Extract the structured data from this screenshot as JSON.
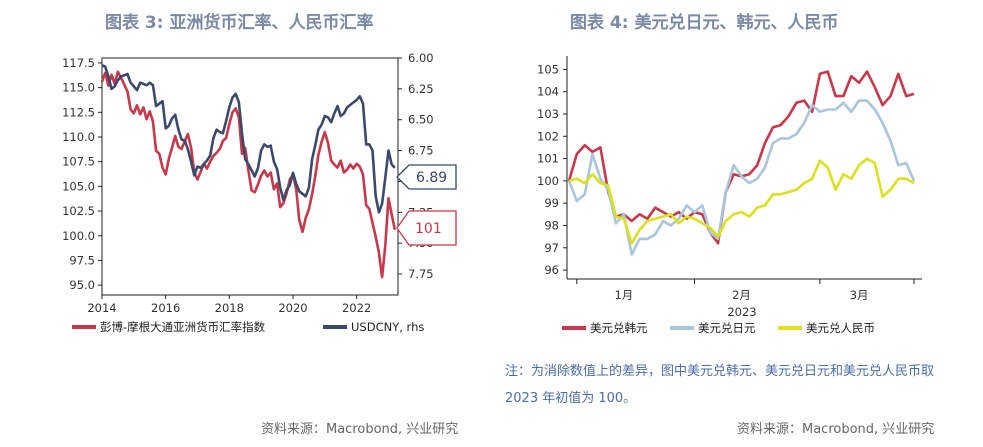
{
  "left_title": "图表 3:  亚洲货币汇率、人民币汇率",
  "right_title": "图表 4:  美元兑日元、韩元、人民币",
  "note": "注：为消除数值上的差异，图中美元兑韩元、美元兑日元和美元兑人民币取 2023 年初值为 100。",
  "source_left": "资料来源：Macrobond, 兴业研究",
  "source_right": "资料来源：Macrobond, 兴业研究",
  "colors": {
    "red": "#c8384a",
    "navy": "#3b4a6b",
    "lightblue": "#a9c6dc",
    "yellow": "#dbe21c"
  },
  "chart_data": [
    {
      "type": "line",
      "title": "图表 3:  亚洲货币汇率、人民币汇率",
      "x_range": [
        2014,
        2023.3
      ],
      "x_ticks": [
        "2014",
        "2016",
        "2018",
        "2020",
        "2022"
      ],
      "x_tick_values": [
        2014,
        2016,
        2018,
        2020,
        2022
      ],
      "ylim_left": [
        94,
        118
      ],
      "y_ticks_left": [
        "117.5",
        "115.0",
        "112.5",
        "110.0",
        "107.5",
        "105.0",
        "102.5",
        "100.0",
        "97.5",
        "95.0"
      ],
      "y_tick_values_left": [
        117.5,
        115,
        112.5,
        110,
        107.5,
        105,
        102.5,
        100,
        97.5,
        95
      ],
      "ylim_right": [
        6.0,
        7.92
      ],
      "y_axis_right_inverted": true,
      "y_ticks_right": [
        "6.00",
        "6.25",
        "6.50",
        "6.75",
        "7.00",
        "7.25",
        "7.50",
        "7.75"
      ],
      "y_tick_values_right": [
        6.0,
        6.25,
        6.5,
        6.75,
        7.0,
        7.25,
        7.5,
        7.75
      ],
      "series": [
        {
          "name": "彭博-摩根大通亚洲货币汇率指数",
          "axis": "left",
          "color": "#c8384a",
          "points": [
            [
              2014.0,
              115.6
            ],
            [
              2014.1,
              116.5
            ],
            [
              2014.2,
              115.2
            ],
            [
              2014.3,
              116.3
            ],
            [
              2014.4,
              115.4
            ],
            [
              2014.5,
              116.6
            ],
            [
              2014.6,
              116.0
            ],
            [
              2014.7,
              115.3
            ],
            [
              2014.8,
              114.6
            ],
            [
              2014.9,
              112.8
            ],
            [
              2015.0,
              112.4
            ],
            [
              2015.1,
              113.2
            ],
            [
              2015.2,
              112.3
            ],
            [
              2015.3,
              113.0
            ],
            [
              2015.4,
              111.8
            ],
            [
              2015.5,
              112.6
            ],
            [
              2015.6,
              111.6
            ],
            [
              2015.7,
              108.6
            ],
            [
              2015.8,
              108.3
            ],
            [
              2015.9,
              106.9
            ],
            [
              2016.0,
              106.2
            ],
            [
              2016.1,
              107.8
            ],
            [
              2016.2,
              108.9
            ],
            [
              2016.3,
              110.1
            ],
            [
              2016.4,
              109.0
            ],
            [
              2016.5,
              108.8
            ],
            [
              2016.6,
              109.6
            ],
            [
              2016.7,
              110.3
            ],
            [
              2016.8,
              108.9
            ],
            [
              2016.9,
              106.4
            ],
            [
              2017.0,
              105.7
            ],
            [
              2017.1,
              106.5
            ],
            [
              2017.2,
              107.3
            ],
            [
              2017.3,
              106.8
            ],
            [
              2017.4,
              107.5
            ],
            [
              2017.5,
              108.1
            ],
            [
              2017.6,
              108.4
            ],
            [
              2017.7,
              108.8
            ],
            [
              2017.8,
              109.6
            ],
            [
              2017.9,
              109.9
            ],
            [
              2018.0,
              111.3
            ],
            [
              2018.1,
              112.5
            ],
            [
              2018.2,
              112.9
            ],
            [
              2018.3,
              112.0
            ],
            [
              2018.4,
              108.3
            ],
            [
              2018.5,
              108.9
            ],
            [
              2018.6,
              106.6
            ],
            [
              2018.7,
              104.6
            ],
            [
              2018.8,
              104.4
            ],
            [
              2018.9,
              105.2
            ],
            [
              2019.0,
              106.1
            ],
            [
              2019.1,
              106.6
            ],
            [
              2019.2,
              106.0
            ],
            [
              2019.3,
              106.4
            ],
            [
              2019.4,
              104.7
            ],
            [
              2019.5,
              105.3
            ],
            [
              2019.6,
              102.9
            ],
            [
              2019.7,
              103.3
            ],
            [
              2019.8,
              104.3
            ],
            [
              2019.9,
              105.7
            ],
            [
              2020.0,
              106.2
            ],
            [
              2020.1,
              104.7
            ],
            [
              2020.2,
              101.6
            ],
            [
              2020.3,
              100.4
            ],
            [
              2020.4,
              101.8
            ],
            [
              2020.5,
              102.7
            ],
            [
              2020.6,
              104.2
            ],
            [
              2020.7,
              106.0
            ],
            [
              2020.8,
              108.2
            ],
            [
              2020.9,
              109.5
            ],
            [
              2021.0,
              110.5
            ],
            [
              2021.1,
              109.4
            ],
            [
              2021.2,
              107.6
            ],
            [
              2021.3,
              107.2
            ],
            [
              2021.4,
              106.9
            ],
            [
              2021.5,
              107.6
            ],
            [
              2021.6,
              106.4
            ],
            [
              2021.7,
              106.7
            ],
            [
              2021.8,
              107.2
            ],
            [
              2021.9,
              106.8
            ],
            [
              2022.0,
              107.3
            ],
            [
              2022.1,
              107.0
            ],
            [
              2022.2,
              106.2
            ],
            [
              2022.3,
              103.1
            ],
            [
              2022.4,
              102.7
            ],
            [
              2022.5,
              101.3
            ],
            [
              2022.6,
              99.9
            ],
            [
              2022.7,
              98.3
            ],
            [
              2022.8,
              95.8
            ],
            [
              2022.9,
              99.0
            ],
            [
              2023.0,
              103.8
            ],
            [
              2023.1,
              102.2
            ],
            [
              2023.2,
              100.6
            ]
          ]
        },
        {
          "name": "USDCNY, rhs",
          "axis": "right",
          "color": "#3b4a6b",
          "points": [
            [
              2014.0,
              6.06
            ],
            [
              2014.1,
              6.07
            ],
            [
              2014.2,
              6.15
            ],
            [
              2014.3,
              6.25
            ],
            [
              2014.4,
              6.23
            ],
            [
              2014.5,
              6.18
            ],
            [
              2014.6,
              6.15
            ],
            [
              2014.7,
              6.14
            ],
            [
              2014.8,
              6.13
            ],
            [
              2014.9,
              6.2
            ],
            [
              2015.0,
              6.23
            ],
            [
              2015.1,
              6.26
            ],
            [
              2015.2,
              6.2
            ],
            [
              2015.3,
              6.21
            ],
            [
              2015.4,
              6.22
            ],
            [
              2015.5,
              6.2
            ],
            [
              2015.6,
              6.22
            ],
            [
              2015.7,
              6.39
            ],
            [
              2015.8,
              6.37
            ],
            [
              2015.9,
              6.35
            ],
            [
              2016.0,
              6.57
            ],
            [
              2016.1,
              6.55
            ],
            [
              2016.2,
              6.49
            ],
            [
              2016.3,
              6.46
            ],
            [
              2016.4,
              6.58
            ],
            [
              2016.5,
              6.66
            ],
            [
              2016.6,
              6.67
            ],
            [
              2016.7,
              6.74
            ],
            [
              2016.8,
              6.84
            ],
            [
              2016.9,
              6.95
            ],
            [
              2017.0,
              6.88
            ],
            [
              2017.1,
              6.89
            ],
            [
              2017.2,
              6.86
            ],
            [
              2017.3,
              6.83
            ],
            [
              2017.4,
              6.79
            ],
            [
              2017.5,
              6.65
            ],
            [
              2017.6,
              6.58
            ],
            [
              2017.7,
              6.6
            ],
            [
              2017.8,
              6.61
            ],
            [
              2017.9,
              6.51
            ],
            [
              2018.0,
              6.4
            ],
            [
              2018.1,
              6.32
            ],
            [
              2018.2,
              6.29
            ],
            [
              2018.3,
              6.36
            ],
            [
              2018.4,
              6.61
            ],
            [
              2018.5,
              6.82
            ],
            [
              2018.6,
              6.86
            ],
            [
              2018.7,
              6.91
            ],
            [
              2018.8,
              6.96
            ],
            [
              2018.9,
              6.89
            ],
            [
              2019.0,
              6.75
            ],
            [
              2019.1,
              6.7
            ],
            [
              2019.2,
              6.72
            ],
            [
              2019.3,
              6.71
            ],
            [
              2019.4,
              6.84
            ],
            [
              2019.5,
              6.9
            ],
            [
              2019.6,
              7.05
            ],
            [
              2019.7,
              7.15
            ],
            [
              2019.8,
              7.07
            ],
            [
              2019.9,
              7.03
            ],
            [
              2020.0,
              6.93
            ],
            [
              2020.1,
              7.02
            ],
            [
              2020.2,
              7.08
            ],
            [
              2020.3,
              7.1
            ],
            [
              2020.4,
              7.12
            ],
            [
              2020.5,
              7.05
            ],
            [
              2020.6,
              6.82
            ],
            [
              2020.7,
              6.71
            ],
            [
              2020.8,
              6.58
            ],
            [
              2020.9,
              6.54
            ],
            [
              2021.0,
              6.47
            ],
            [
              2021.1,
              6.48
            ],
            [
              2021.2,
              6.52
            ],
            [
              2021.3,
              6.45
            ],
            [
              2021.4,
              6.39
            ],
            [
              2021.5,
              6.47
            ],
            [
              2021.6,
              6.45
            ],
            [
              2021.7,
              6.4
            ],
            [
              2021.8,
              6.38
            ],
            [
              2021.9,
              6.36
            ],
            [
              2022.0,
              6.34
            ],
            [
              2022.1,
              6.31
            ],
            [
              2022.2,
              6.37
            ],
            [
              2022.3,
              6.7
            ],
            [
              2022.4,
              6.7
            ],
            [
              2022.5,
              6.75
            ],
            [
              2022.6,
              7.12
            ],
            [
              2022.7,
              7.25
            ],
            [
              2022.8,
              7.18
            ],
            [
              2022.9,
              6.97
            ],
            [
              2023.0,
              6.75
            ],
            [
              2023.1,
              6.86
            ],
            [
              2023.2,
              6.89
            ]
          ]
        }
      ],
      "annotations": [
        {
          "label": "6.89",
          "series": "USDCNY, rhs"
        },
        {
          "label": "101",
          "series": "彭博-摩根大通亚洲货币汇率指数"
        }
      ],
      "legend": [
        "彭博-摩根大通亚洲货币汇率指数",
        "USDCNY, rhs"
      ],
      "legend_placement": "bottom"
    },
    {
      "type": "line",
      "title": "图表 4:  美元兑日元、韩元、人民币",
      "x_range": [
        0,
        42
      ],
      "x_ticks": [
        "1月",
        "2月",
        "3月"
      ],
      "x_tick_values": [
        7,
        22,
        37
      ],
      "x_group_label": "2023",
      "ylim": [
        95.6,
        105.6
      ],
      "y_ticks": [
        "105",
        "104",
        "103",
        "102",
        "101",
        "100",
        "99",
        "98",
        "97",
        "96"
      ],
      "y_tick_values": [
        105,
        104,
        103,
        102,
        101,
        100,
        99,
        98,
        97,
        96
      ],
      "series": [
        {
          "name": "美元兑韩元",
          "color": "#c8384a",
          "values": [
            100.0,
            101.2,
            101.6,
            101.3,
            101.5,
            99.5,
            98.4,
            98.5,
            98.2,
            98.5,
            98.3,
            98.8,
            98.6,
            98.4,
            98.6,
            98.3,
            98.6,
            98.5,
            97.7,
            97.2,
            99.5,
            100.3,
            100.2,
            100.3,
            100.7,
            101.7,
            102.4,
            102.5,
            102.9,
            103.5,
            103.6,
            103.1,
            104.8,
            104.9,
            103.8,
            103.8,
            104.7,
            104.4,
            104.9,
            104.2,
            103.4,
            103.8,
            104.8,
            103.8,
            103.9
          ]
        },
        {
          "name": "美元兑日元",
          "color": "#a9c6dc",
          "values": [
            100.0,
            99.1,
            99.4,
            101.2,
            100.1,
            99.6,
            98.1,
            98.5,
            96.7,
            97.4,
            97.4,
            97.6,
            98.2,
            98.0,
            98.3,
            98.9,
            98.6,
            98.9,
            97.7,
            97.4,
            99.5,
            100.7,
            100.2,
            99.9,
            100.1,
            100.6,
            101.7,
            101.9,
            101.9,
            102.1,
            102.6,
            103.4,
            103.1,
            103.2,
            103.2,
            103.5,
            103.1,
            103.6,
            103.6,
            103.2,
            102.6,
            101.8,
            100.7,
            100.8,
            100.0
          ]
        },
        {
          "name": "美元兑人民币",
          "color": "#dbe21c",
          "values": [
            100.0,
            100.1,
            99.9,
            100.3,
            99.9,
            99.8,
            98.4,
            98.3,
            97.2,
            97.8,
            98.2,
            98.3,
            98.4,
            98.5,
            98.1,
            98.4,
            98.3,
            98.1,
            97.9,
            97.5,
            98.2,
            98.5,
            98.6,
            98.4,
            98.8,
            98.9,
            99.4,
            99.4,
            99.5,
            99.6,
            99.9,
            100.1,
            100.9,
            100.6,
            99.6,
            100.3,
            100.1,
            100.7,
            101.0,
            100.8,
            99.3,
            99.6,
            100.1,
            100.1,
            99.9
          ]
        }
      ],
      "legend": [
        "美元兑韩元",
        "美元兑日元",
        "美元兑人民币"
      ],
      "legend_placement": "bottom"
    }
  ]
}
